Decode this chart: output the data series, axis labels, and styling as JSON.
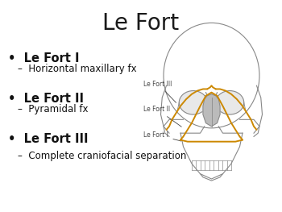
{
  "title": "Le Fort",
  "title_fontsize": 20,
  "title_color": "#1a1a1a",
  "background_color": "#ffffff",
  "bullet_items": [
    {
      "bullet": "Le Fort I",
      "sub": "Horizontal maxillary fx"
    },
    {
      "bullet": "Le Fort II",
      "sub": "Pyramidal fx"
    },
    {
      "bullet": "Le Fort III",
      "sub": "Complete craniofacial separation"
    }
  ],
  "bullet_fontsize": 10.5,
  "sub_fontsize": 8.5,
  "bullet_color": "#111111",
  "sub_color": "#111111",
  "image_labels": [
    "Le Fort III",
    "Le Fort II",
    "Le Fort I"
  ],
  "label_fontsize": 5.5,
  "label_color": "#444444",
  "gold_color": "#CC8800",
  "skull_color": "#888888",
  "skull_lw": 0.8,
  "gold_lw": 1.4
}
